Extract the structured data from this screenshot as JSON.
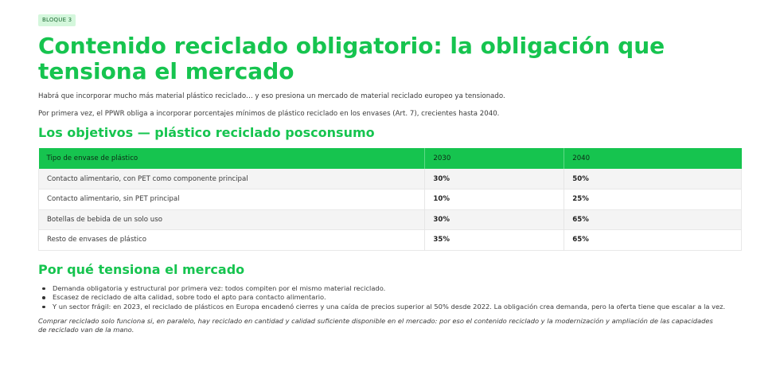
{
  "badge": "BLOQUE 3",
  "title": "Contenido reciclado obligatorio: la obligación que tensiona el mercado",
  "paragraphs": [
    "Habrá que incorporar mucho más material plástico reciclado… y eso presiona un mercado de material reciclado europeo ya tensionado.",
    "Por primera vez, el PPWR obliga a incorporar porcentajes mínimos de plástico reciclado en los envases (Art. 7), crecientes hasta 2040."
  ],
  "objectives": {
    "heading": "Los objetivos — plástico reciclado posconsumo",
    "headers": [
      "Tipo de envase de plástico",
      "2030",
      "2040"
    ],
    "rows": [
      [
        "Contacto alimentario, con PET como componente principal",
        "30%",
        "50%"
      ],
      [
        "Contacto alimentario, sin PET principal",
        "10%",
        "25%"
      ],
      [
        "Botellas de bebida de un solo uso",
        "30%",
        "65%"
      ],
      [
        "Resto de envases de plástico",
        "35%",
        "65%"
      ]
    ]
  },
  "why": {
    "heading": "Por qué tensiona el mercado",
    "bullets": [
      "Demanda obligatoria y estructural por primera vez: todos compiten por el mismo material reciclado.",
      "Escasez de reciclado de alta calidad, sobre todo el apto para contacto alimentario.",
      "Y un sector frágil: en 2023, el reciclado de plásticos en Europa encadenó cierres y una caída de precios superior al 50% desde 2022. La obligación crea demanda, pero la oferta tiene que escalar a la vez."
    ]
  },
  "closing": "Comprar reciclado solo funciona si, en paralelo, hay reciclado en cantidad y calidad suficiente disponible en el mercado: por eso el contenido reciclado y la modernización y ampliación de las capacidades de reciclado van de la mano.",
  "colors": {
    "accent": "#16c44f",
    "badge_bg": "#d4f7dc"
  }
}
